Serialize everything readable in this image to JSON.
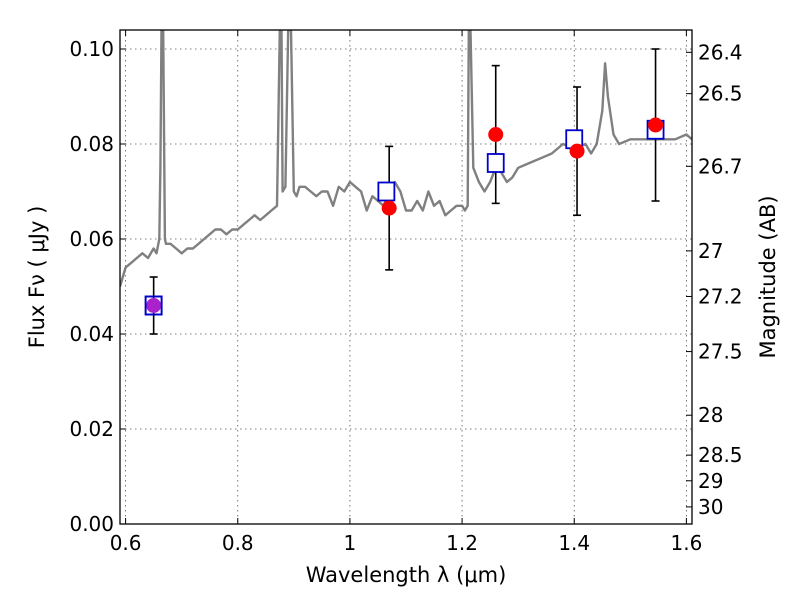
{
  "chart_data": {
    "type": "scatter",
    "title": "",
    "xlabel": "Wavelength  λ (μm)",
    "ylabel": "Flux  Fν  ( μJy )",
    "ylabel_right": "Magnitude (AB)",
    "xlim": [
      0.59,
      1.61
    ],
    "ylim": [
      0.0,
      0.104
    ],
    "grid": true,
    "x_ticks": [
      0.6,
      0.8,
      1.0,
      1.2,
      1.4,
      1.6
    ],
    "x_tick_labels": [
      "0.6",
      "0.8",
      "1",
      "1.2",
      "1.4",
      "1.6"
    ],
    "y_ticks": [
      0.0,
      0.02,
      0.04,
      0.06,
      0.08,
      0.1
    ],
    "y_tick_labels": [
      "0.00",
      "0.02",
      "0.04",
      "0.06",
      "0.08",
      "0.10"
    ],
    "right_ticks": [
      {
        "label": "26.4",
        "flux": 0.0993
      },
      {
        "label": "26.5",
        "flux": 0.0906
      },
      {
        "label": "26.7",
        "flux": 0.0753
      },
      {
        "label": "27",
        "flux": 0.0575
      },
      {
        "label": "27.2",
        "flux": 0.0479
      },
      {
        "label": "27.5",
        "flux": 0.0363
      },
      {
        "label": "28",
        "flux": 0.0229
      },
      {
        "label": "28.5",
        "flux": 0.0145
      },
      {
        "label": "29",
        "flux": 0.0091
      },
      {
        "label": "30",
        "flux": 0.0036
      }
    ],
    "colors": {
      "spectrum": "#808080",
      "observed": "#ff0000",
      "model": "#0000cc",
      "overlap": "#aa22cc"
    },
    "series": [
      {
        "role": "spectrum",
        "x": [
          0.59,
          0.6,
          0.61,
          0.62,
          0.63,
          0.64,
          0.65,
          0.655,
          0.66,
          0.662,
          0.664,
          0.667,
          0.67,
          0.672,
          0.675,
          0.68,
          0.69,
          0.7,
          0.71,
          0.72,
          0.73,
          0.74,
          0.75,
          0.76,
          0.77,
          0.78,
          0.79,
          0.8,
          0.81,
          0.82,
          0.83,
          0.84,
          0.85,
          0.86,
          0.87,
          0.875,
          0.878,
          0.88,
          0.885,
          0.89,
          0.895,
          0.9,
          0.905,
          0.91,
          0.92,
          0.93,
          0.94,
          0.95,
          0.96,
          0.97,
          0.98,
          0.99,
          1.0,
          1.01,
          1.02,
          1.03,
          1.04,
          1.05,
          1.06,
          1.07,
          1.08,
          1.09,
          1.1,
          1.11,
          1.12,
          1.13,
          1.14,
          1.15,
          1.16,
          1.17,
          1.18,
          1.19,
          1.2,
          1.205,
          1.21,
          1.212,
          1.215,
          1.22,
          1.23,
          1.24,
          1.25,
          1.26,
          1.27,
          1.28,
          1.29,
          1.3,
          1.32,
          1.34,
          1.36,
          1.38,
          1.4,
          1.42,
          1.43,
          1.44,
          1.45,
          1.455,
          1.46,
          1.47,
          1.48,
          1.5,
          1.52,
          1.54,
          1.56,
          1.58,
          1.6,
          1.61
        ],
        "y": [
          0.05,
          0.054,
          0.055,
          0.056,
          0.057,
          0.056,
          0.058,
          0.057,
          0.06,
          0.075,
          0.104,
          0.104,
          0.06,
          0.059,
          0.059,
          0.059,
          0.058,
          0.057,
          0.058,
          0.058,
          0.059,
          0.06,
          0.061,
          0.062,
          0.062,
          0.061,
          0.062,
          0.062,
          0.063,
          0.064,
          0.065,
          0.064,
          0.065,
          0.066,
          0.067,
          0.104,
          0.104,
          0.07,
          0.071,
          0.104,
          0.104,
          0.07,
          0.069,
          0.071,
          0.071,
          0.07,
          0.069,
          0.07,
          0.07,
          0.067,
          0.071,
          0.07,
          0.072,
          0.071,
          0.07,
          0.066,
          0.069,
          0.068,
          0.067,
          0.07,
          0.072,
          0.07,
          0.066,
          0.066,
          0.068,
          0.066,
          0.07,
          0.067,
          0.068,
          0.065,
          0.066,
          0.067,
          0.067,
          0.066,
          0.067,
          0.104,
          0.104,
          0.075,
          0.072,
          0.07,
          0.072,
          0.075,
          0.074,
          0.072,
          0.073,
          0.075,
          0.076,
          0.077,
          0.078,
          0.08,
          0.079,
          0.08,
          0.078,
          0.08,
          0.087,
          0.097,
          0.09,
          0.082,
          0.08,
          0.081,
          0.081,
          0.081,
          0.081,
          0.081,
          0.082,
          0.081
        ]
      },
      {
        "role": "model",
        "x": [
          0.65,
          1.065,
          1.26,
          1.4,
          1.545
        ],
        "y": [
          0.046,
          0.07,
          0.076,
          0.081,
          0.083
        ]
      },
      {
        "role": "observed",
        "x": [
          0.65,
          1.07,
          1.26,
          1.405,
          1.545
        ],
        "y": [
          0.046,
          0.0665,
          0.082,
          0.0785,
          0.084
        ],
        "err": [
          0.006,
          0.013,
          0.0145,
          0.0135,
          0.016
        ]
      }
    ]
  }
}
